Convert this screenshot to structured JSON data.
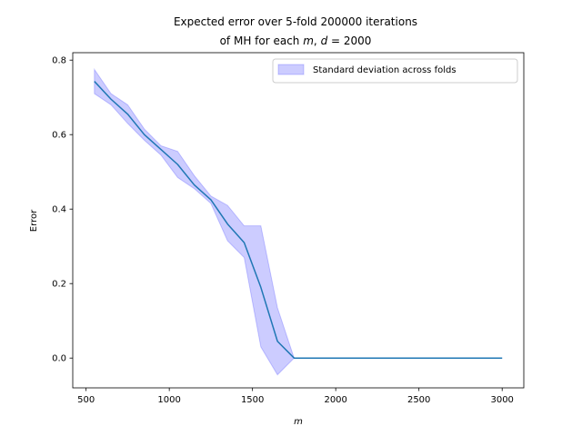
{
  "chart_data": {
    "type": "line",
    "title": "Expected error over 5-fold 200000 iterations",
    "title_line2_prefix": "of MH for each ",
    "title_m": "m",
    "title_comma": ", ",
    "title_d": "d",
    "title_suffix": " = 2000",
    "xlabel": "m",
    "ylabel": "Error",
    "xlim": [
      420,
      3130
    ],
    "ylim": [
      -0.08,
      0.82
    ],
    "xticks": [
      500,
      1000,
      1500,
      2000,
      2500,
      3000
    ],
    "xtick_labels": [
      "500",
      "1000",
      "1500",
      "2000",
      "2500",
      "3000"
    ],
    "yticks": [
      0.0,
      0.2,
      0.4,
      0.6,
      0.8
    ],
    "ytick_labels": [
      "0.0",
      "0.2",
      "0.4",
      "0.6",
      "0.8"
    ],
    "grid": false,
    "legend_position": "top-right",
    "legend": [
      "Standard deviation across folds"
    ],
    "x": [
      550,
      650,
      750,
      850,
      950,
      1050,
      1150,
      1250,
      1350,
      1450,
      1550,
      1650,
      1750,
      1850,
      1950,
      2050,
      2150,
      2250,
      2350,
      2450,
      2550,
      2650,
      2750,
      2850,
      3000
    ],
    "series": [
      {
        "values": [
          0.743,
          0.695,
          0.655,
          0.6,
          0.56,
          0.52,
          0.465,
          0.425,
          0.36,
          0.31,
          0.19,
          0.045,
          0.0,
          0.0,
          0.0,
          0.0,
          0.0,
          0.0,
          0.0,
          0.0,
          0.0,
          0.0,
          0.0,
          0.0,
          0.0
        ],
        "color": "#1f77b4"
      }
    ],
    "band": {
      "name": "Standard deviation across folds",
      "upper": [
        0.775,
        0.71,
        0.68,
        0.615,
        0.57,
        0.555,
        0.49,
        0.435,
        0.41,
        0.355,
        0.355,
        0.135,
        0.0,
        0.0,
        0.0,
        0.0,
        0.0,
        0.0,
        0.0,
        0.0,
        0.0,
        0.0,
        0.0,
        0.0,
        0.0
      ],
      "lower": [
        0.71,
        0.68,
        0.63,
        0.585,
        0.545,
        0.485,
        0.455,
        0.415,
        0.315,
        0.27,
        0.03,
        -0.045,
        0.0,
        0.0,
        0.0,
        0.0,
        0.0,
        0.0,
        0.0,
        0.0,
        0.0,
        0.0,
        0.0,
        0.0,
        0.0
      ],
      "fill_color": "#0000ff",
      "fill_opacity": 0.2
    }
  }
}
